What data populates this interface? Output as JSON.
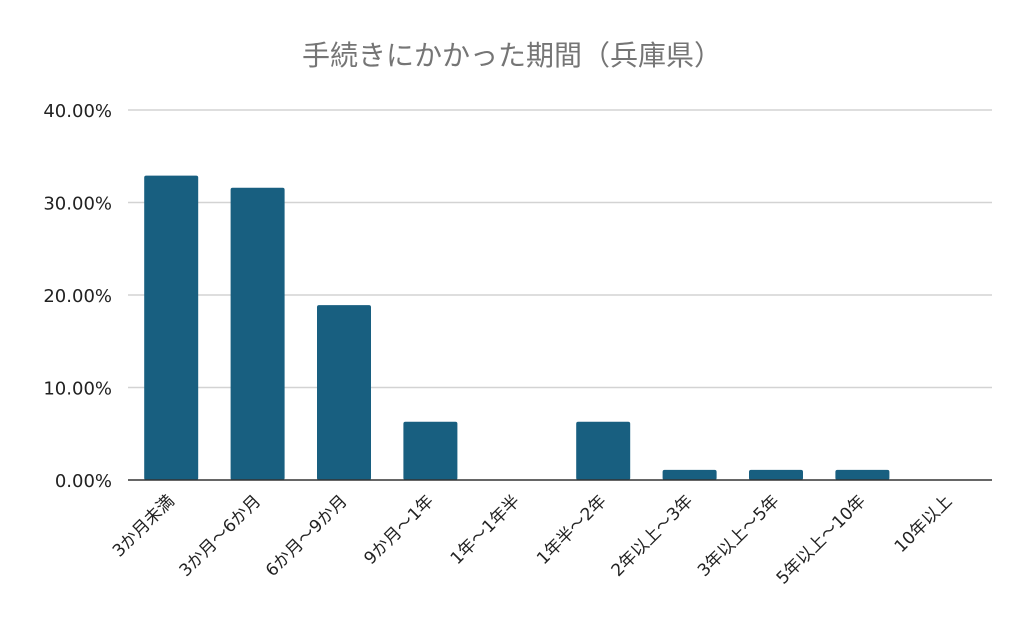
{
  "chart_data": {
    "type": "bar",
    "title": "手続きにかかった期間（兵庫県）",
    "xlabel": "",
    "ylabel": "",
    "categories": [
      "3か月未満",
      "3か月～6か月",
      "6か月～9か月",
      "9か月～1年",
      "1年～1年半",
      "1年半～2年",
      "2年以上～3年",
      "3年以上～5年",
      "5年以上～10年",
      "10年以上"
    ],
    "values": [
      32.9,
      31.6,
      18.9,
      6.3,
      0.0,
      6.3,
      1.1,
      1.1,
      1.1,
      0.0
    ],
    "ylim": [
      0,
      40
    ],
    "yticks": [
      "0.00%",
      "10.00%",
      "20.00%",
      "30.00%",
      "40.00%"
    ],
    "ytick_values": [
      0,
      10,
      20,
      30,
      40
    ],
    "grid": true,
    "legend": "none",
    "bar_color": "#185F80",
    "grid_color": "#D3D3D3",
    "axis_color": "#333333"
  }
}
